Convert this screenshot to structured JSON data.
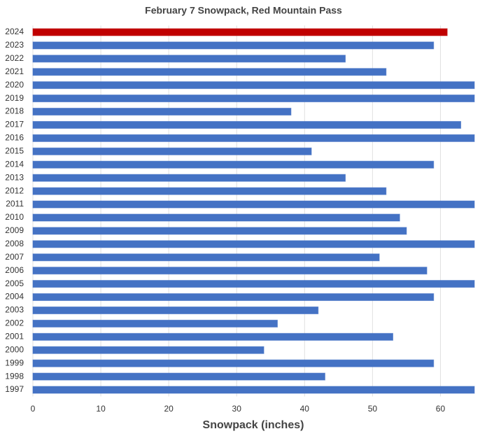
{
  "chart_data": {
    "type": "hbar",
    "title": "February 7 Snowpack, Red Mountain Pass",
    "x_label": "Snowpack (inches)",
    "categories": [
      "2024",
      "2023",
      "2022",
      "2021",
      "2020",
      "2019",
      "2018",
      "2017",
      "2016",
      "2015",
      "2014",
      "2013",
      "2012",
      "2011",
      "2010",
      "2009",
      "2008",
      "2007",
      "2006",
      "2005",
      "2004",
      "2003",
      "2002",
      "2001",
      "2000",
      "1999",
      "1998",
      "1997"
    ],
    "values": [
      61,
      59,
      46,
      52,
      65,
      65,
      38,
      63,
      65,
      41,
      59,
      46,
      52,
      65,
      54,
      55,
      65,
      51,
      58,
      65,
      59,
      42,
      36,
      53,
      34,
      59,
      43,
      65
    ],
    "colors": [
      "#c00000",
      "#4472c4",
      "#4472c4",
      "#4472c4",
      "#4472c4",
      "#4472c4",
      "#4472c4",
      "#4472c4",
      "#4472c4",
      "#4472c4",
      "#4472c4",
      "#4472c4",
      "#4472c4",
      "#4472c4",
      "#4472c4",
      "#4472c4",
      "#4472c4",
      "#4472c4",
      "#4472c4",
      "#4472c4",
      "#4472c4",
      "#4472c4",
      "#4472c4",
      "#4472c4",
      "#4472c4",
      "#4472c4",
      "#4472c4",
      "#4472c4"
    ],
    "xlim": [
      0,
      65
    ],
    "xticks": [
      0,
      10,
      20,
      30,
      40,
      50,
      60
    ],
    "grid": true
  }
}
